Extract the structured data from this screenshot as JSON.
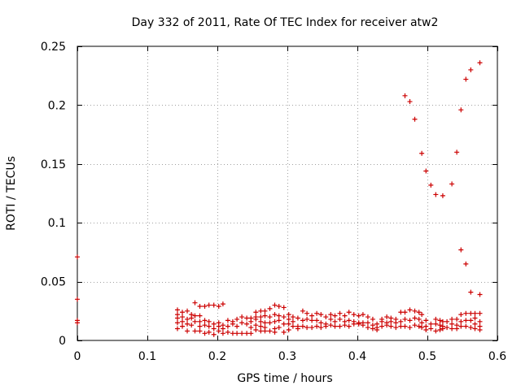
{
  "chart_data": {
    "type": "scatter",
    "title": "Day 332 of 2011, Rate Of TEC Index for receiver atw2",
    "xlabel": "GPS time / hours",
    "ylabel": "ROTI / TECUs",
    "xlim": [
      0,
      0.6
    ],
    "ylim": [
      0,
      0.25
    ],
    "xticks": [
      0,
      0.1,
      0.2,
      0.3,
      0.4,
      0.5,
      0.6
    ],
    "xtick_labels": [
      "0",
      "0.1",
      "0.2",
      "0.3",
      "0.4",
      "0.5",
      "0.6"
    ],
    "yticks": [
      0,
      0.05,
      0.1,
      0.15,
      0.2,
      0.25
    ],
    "ytick_labels": [
      "0",
      "0.05",
      "0.1",
      "0.15",
      "0.2",
      "0.25"
    ],
    "grid": true,
    "legend": "none",
    "marker": "plus",
    "color": "#cc0000",
    "series": [
      {
        "name": "ROTI",
        "points": [
          [
            0.0,
            0.071
          ],
          [
            0.0,
            0.035
          ],
          [
            0.0,
            0.017
          ],
          [
            0.0,
            0.015
          ],
          [
            0.143,
            0.026
          ],
          [
            0.143,
            0.022
          ],
          [
            0.143,
            0.019
          ],
          [
            0.143,
            0.015
          ],
          [
            0.143,
            0.01
          ],
          [
            0.15,
            0.024
          ],
          [
            0.15,
            0.02
          ],
          [
            0.15,
            0.016
          ],
          [
            0.15,
            0.012
          ],
          [
            0.157,
            0.025
          ],
          [
            0.157,
            0.018
          ],
          [
            0.157,
            0.014
          ],
          [
            0.157,
            0.008
          ],
          [
            0.163,
            0.022
          ],
          [
            0.163,
            0.019
          ],
          [
            0.163,
            0.013
          ],
          [
            0.168,
            0.032
          ],
          [
            0.168,
            0.021
          ],
          [
            0.168,
            0.016
          ],
          [
            0.168,
            0.008
          ],
          [
            0.175,
            0.029
          ],
          [
            0.175,
            0.021
          ],
          [
            0.175,
            0.016
          ],
          [
            0.175,
            0.012
          ],
          [
            0.175,
            0.008
          ],
          [
            0.182,
            0.029
          ],
          [
            0.182,
            0.017
          ],
          [
            0.182,
            0.013
          ],
          [
            0.182,
            0.006
          ],
          [
            0.188,
            0.03
          ],
          [
            0.188,
            0.016
          ],
          [
            0.188,
            0.012
          ],
          [
            0.188,
            0.007
          ],
          [
            0.195,
            0.03
          ],
          [
            0.195,
            0.014
          ],
          [
            0.195,
            0.01
          ],
          [
            0.195,
            0.005
          ],
          [
            0.202,
            0.029
          ],
          [
            0.202,
            0.015
          ],
          [
            0.202,
            0.012
          ],
          [
            0.202,
            0.008
          ],
          [
            0.208,
            0.031
          ],
          [
            0.208,
            0.013
          ],
          [
            0.208,
            0.01
          ],
          [
            0.208,
            0.006
          ],
          [
            0.215,
            0.017
          ],
          [
            0.215,
            0.012
          ],
          [
            0.215,
            0.007
          ],
          [
            0.222,
            0.016
          ],
          [
            0.222,
            0.014
          ],
          [
            0.222,
            0.006
          ],
          [
            0.228,
            0.018
          ],
          [
            0.228,
            0.012
          ],
          [
            0.228,
            0.006
          ],
          [
            0.235,
            0.02
          ],
          [
            0.235,
            0.015
          ],
          [
            0.235,
            0.006
          ],
          [
            0.242,
            0.019
          ],
          [
            0.242,
            0.014
          ],
          [
            0.242,
            0.006
          ],
          [
            0.248,
            0.019
          ],
          [
            0.248,
            0.016
          ],
          [
            0.248,
            0.011
          ],
          [
            0.248,
            0.006
          ],
          [
            0.255,
            0.024
          ],
          [
            0.255,
            0.02
          ],
          [
            0.255,
            0.018
          ],
          [
            0.255,
            0.013
          ],
          [
            0.255,
            0.009
          ],
          [
            0.262,
            0.025
          ],
          [
            0.262,
            0.02
          ],
          [
            0.262,
            0.016
          ],
          [
            0.262,
            0.012
          ],
          [
            0.262,
            0.008
          ],
          [
            0.268,
            0.025
          ],
          [
            0.268,
            0.021
          ],
          [
            0.268,
            0.015
          ],
          [
            0.268,
            0.011
          ],
          [
            0.268,
            0.008
          ],
          [
            0.275,
            0.027
          ],
          [
            0.275,
            0.02
          ],
          [
            0.275,
            0.015
          ],
          [
            0.275,
            0.008
          ],
          [
            0.282,
            0.03
          ],
          [
            0.282,
            0.022
          ],
          [
            0.282,
            0.016
          ],
          [
            0.282,
            0.01
          ],
          [
            0.282,
            0.007
          ],
          [
            0.288,
            0.029
          ],
          [
            0.288,
            0.021
          ],
          [
            0.288,
            0.017
          ],
          [
            0.288,
            0.011
          ],
          [
            0.295,
            0.028
          ],
          [
            0.295,
            0.02
          ],
          [
            0.295,
            0.014
          ],
          [
            0.295,
            0.007
          ],
          [
            0.302,
            0.022
          ],
          [
            0.302,
            0.018
          ],
          [
            0.302,
            0.014
          ],
          [
            0.302,
            0.009
          ],
          [
            0.308,
            0.02
          ],
          [
            0.308,
            0.016
          ],
          [
            0.308,
            0.012
          ],
          [
            0.315,
            0.019
          ],
          [
            0.315,
            0.012
          ],
          [
            0.315,
            0.01
          ],
          [
            0.322,
            0.025
          ],
          [
            0.322,
            0.017
          ],
          [
            0.322,
            0.012
          ],
          [
            0.328,
            0.023
          ],
          [
            0.328,
            0.018
          ],
          [
            0.328,
            0.011
          ],
          [
            0.335,
            0.021
          ],
          [
            0.335,
            0.017
          ],
          [
            0.335,
            0.011
          ],
          [
            0.342,
            0.023
          ],
          [
            0.342,
            0.017
          ],
          [
            0.342,
            0.012
          ],
          [
            0.348,
            0.022
          ],
          [
            0.348,
            0.015
          ],
          [
            0.348,
            0.011
          ],
          [
            0.355,
            0.02
          ],
          [
            0.355,
            0.014
          ],
          [
            0.355,
            0.012
          ],
          [
            0.362,
            0.022
          ],
          [
            0.362,
            0.018
          ],
          [
            0.362,
            0.013
          ],
          [
            0.368,
            0.021
          ],
          [
            0.368,
            0.016
          ],
          [
            0.368,
            0.012
          ],
          [
            0.375,
            0.023
          ],
          [
            0.375,
            0.018
          ],
          [
            0.375,
            0.012
          ],
          [
            0.382,
            0.021
          ],
          [
            0.382,
            0.016
          ],
          [
            0.382,
            0.013
          ],
          [
            0.388,
            0.024
          ],
          [
            0.388,
            0.017
          ],
          [
            0.388,
            0.012
          ],
          [
            0.395,
            0.022
          ],
          [
            0.395,
            0.016
          ],
          [
            0.395,
            0.014
          ],
          [
            0.402,
            0.021
          ],
          [
            0.402,
            0.015
          ],
          [
            0.402,
            0.014
          ],
          [
            0.408,
            0.022
          ],
          [
            0.408,
            0.015
          ],
          [
            0.408,
            0.013
          ],
          [
            0.415,
            0.02
          ],
          [
            0.415,
            0.015
          ],
          [
            0.415,
            0.011
          ],
          [
            0.422,
            0.018
          ],
          [
            0.422,
            0.013
          ],
          [
            0.422,
            0.01
          ],
          [
            0.428,
            0.014
          ],
          [
            0.428,
            0.011
          ],
          [
            0.428,
            0.009
          ],
          [
            0.435,
            0.018
          ],
          [
            0.435,
            0.016
          ],
          [
            0.435,
            0.012
          ],
          [
            0.442,
            0.02
          ],
          [
            0.442,
            0.015
          ],
          [
            0.442,
            0.013
          ],
          [
            0.448,
            0.019
          ],
          [
            0.448,
            0.016
          ],
          [
            0.448,
            0.012
          ],
          [
            0.455,
            0.018
          ],
          [
            0.455,
            0.015
          ],
          [
            0.455,
            0.011
          ],
          [
            0.462,
            0.024
          ],
          [
            0.462,
            0.016
          ],
          [
            0.462,
            0.012
          ],
          [
            0.468,
            0.208
          ],
          [
            0.468,
            0.024
          ],
          [
            0.468,
            0.018
          ],
          [
            0.468,
            0.012
          ],
          [
            0.475,
            0.203
          ],
          [
            0.475,
            0.026
          ],
          [
            0.475,
            0.017
          ],
          [
            0.475,
            0.011
          ],
          [
            0.482,
            0.188
          ],
          [
            0.482,
            0.025
          ],
          [
            0.482,
            0.019
          ],
          [
            0.482,
            0.013
          ],
          [
            0.488,
            0.024
          ],
          [
            0.488,
            0.018
          ],
          [
            0.488,
            0.012
          ],
          [
            0.492,
            0.159
          ],
          [
            0.492,
            0.022
          ],
          [
            0.492,
            0.015
          ],
          [
            0.492,
            0.011
          ],
          [
            0.498,
            0.144
          ],
          [
            0.498,
            0.017
          ],
          [
            0.498,
            0.012
          ],
          [
            0.498,
            0.009
          ],
          [
            0.505,
            0.132
          ],
          [
            0.505,
            0.014
          ],
          [
            0.505,
            0.01
          ],
          [
            0.512,
            0.124
          ],
          [
            0.512,
            0.018
          ],
          [
            0.512,
            0.014
          ],
          [
            0.512,
            0.008
          ],
          [
            0.518,
            0.017
          ],
          [
            0.518,
            0.013
          ],
          [
            0.518,
            0.009
          ],
          [
            0.522,
            0.123
          ],
          [
            0.522,
            0.016
          ],
          [
            0.522,
            0.012
          ],
          [
            0.522,
            0.01
          ],
          [
            0.528,
            0.016
          ],
          [
            0.528,
            0.011
          ],
          [
            0.535,
            0.133
          ],
          [
            0.535,
            0.018
          ],
          [
            0.535,
            0.014
          ],
          [
            0.535,
            0.01
          ],
          [
            0.542,
            0.16
          ],
          [
            0.542,
            0.018
          ],
          [
            0.542,
            0.013
          ],
          [
            0.542,
            0.01
          ],
          [
            0.548,
            0.196
          ],
          [
            0.548,
            0.077
          ],
          [
            0.548,
            0.022
          ],
          [
            0.548,
            0.016
          ],
          [
            0.548,
            0.012
          ],
          [
            0.555,
            0.222
          ],
          [
            0.555,
            0.065
          ],
          [
            0.555,
            0.023
          ],
          [
            0.555,
            0.017
          ],
          [
            0.555,
            0.012
          ],
          [
            0.562,
            0.23
          ],
          [
            0.562,
            0.041
          ],
          [
            0.562,
            0.023
          ],
          [
            0.562,
            0.017
          ],
          [
            0.562,
            0.011
          ],
          [
            0.568,
            0.023
          ],
          [
            0.568,
            0.019
          ],
          [
            0.568,
            0.014
          ],
          [
            0.568,
            0.01
          ],
          [
            0.575,
            0.236
          ],
          [
            0.575,
            0.039
          ],
          [
            0.575,
            0.023
          ],
          [
            0.575,
            0.016
          ],
          [
            0.575,
            0.012
          ],
          [
            0.575,
            0.009
          ]
        ]
      }
    ]
  }
}
